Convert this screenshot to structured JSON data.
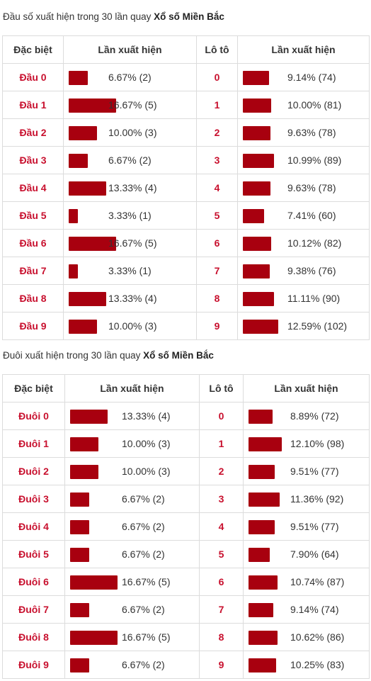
{
  "section1": {
    "title_prefix": "Đầu số xuất hiện trong 30 lần quay",
    "title_bold": "Xổ số Miền Bắc",
    "headers": [
      "Đặc biệt",
      "Lần xuất hiện",
      "Lô tô",
      "Lần xuất hiện"
    ],
    "rows": [
      {
        "label": "Đầu 0",
        "db_pct": 6.67,
        "db_text": "6.67% (2)",
        "lo": "0",
        "lo_pct": 9.14,
        "lo_text": "9.14% (74)"
      },
      {
        "label": "Đầu 1",
        "db_pct": 16.67,
        "db_text": "16.67% (5)",
        "lo": "1",
        "lo_pct": 10.0,
        "lo_text": "10.00% (81)"
      },
      {
        "label": "Đầu 2",
        "db_pct": 10.0,
        "db_text": "10.00% (3)",
        "lo": "2",
        "lo_pct": 9.63,
        "lo_text": "9.63% (78)"
      },
      {
        "label": "Đầu 3",
        "db_pct": 6.67,
        "db_text": "6.67% (2)",
        "lo": "3",
        "lo_pct": 10.99,
        "lo_text": "10.99% (89)"
      },
      {
        "label": "Đầu 4",
        "db_pct": 13.33,
        "db_text": "13.33% (4)",
        "lo": "4",
        "lo_pct": 9.63,
        "lo_text": "9.63% (78)"
      },
      {
        "label": "Đầu 5",
        "db_pct": 3.33,
        "db_text": "3.33% (1)",
        "lo": "5",
        "lo_pct": 7.41,
        "lo_text": "7.41% (60)"
      },
      {
        "label": "Đầu 6",
        "db_pct": 16.67,
        "db_text": "16.67% (5)",
        "lo": "6",
        "lo_pct": 10.12,
        "lo_text": "10.12% (82)"
      },
      {
        "label": "Đầu 7",
        "db_pct": 3.33,
        "db_text": "3.33% (1)",
        "lo": "7",
        "lo_pct": 9.38,
        "lo_text": "9.38% (76)"
      },
      {
        "label": "Đầu 8",
        "db_pct": 13.33,
        "db_text": "13.33% (4)",
        "lo": "8",
        "lo_pct": 11.11,
        "lo_text": "11.11% (90)"
      },
      {
        "label": "Đầu 9",
        "db_pct": 10.0,
        "db_text": "10.00% (3)",
        "lo": "9",
        "lo_pct": 12.59,
        "lo_text": "12.59% (102)"
      }
    ]
  },
  "section2": {
    "title_prefix": "Đuôi xuất hiện trong 30 lần quay",
    "title_bold": "Xổ số Miền Bắc",
    "headers": [
      "Đặc biệt",
      "Lần xuất hiện",
      "Lô tô",
      "Lần xuất hiện"
    ],
    "rows": [
      {
        "label": "Đuôi 0",
        "db_pct": 13.33,
        "db_text": "13.33% (4)",
        "lo": "0",
        "lo_pct": 8.89,
        "lo_text": "8.89% (72)"
      },
      {
        "label": "Đuôi 1",
        "db_pct": 10.0,
        "db_text": "10.00% (3)",
        "lo": "1",
        "lo_pct": 12.1,
        "lo_text": "12.10% (98)"
      },
      {
        "label": "Đuôi 2",
        "db_pct": 10.0,
        "db_text": "10.00% (3)",
        "lo": "2",
        "lo_pct": 9.51,
        "lo_text": "9.51% (77)"
      },
      {
        "label": "Đuôi 3",
        "db_pct": 6.67,
        "db_text": "6.67% (2)",
        "lo": "3",
        "lo_pct": 11.36,
        "lo_text": "11.36% (92)"
      },
      {
        "label": "Đuôi 4",
        "db_pct": 6.67,
        "db_text": "6.67% (2)",
        "lo": "4",
        "lo_pct": 9.51,
        "lo_text": "9.51% (77)"
      },
      {
        "label": "Đuôi 5",
        "db_pct": 6.67,
        "db_text": "6.67% (2)",
        "lo": "5",
        "lo_pct": 7.9,
        "lo_text": "7.90% (64)"
      },
      {
        "label": "Đuôi 6",
        "db_pct": 16.67,
        "db_text": "16.67% (5)",
        "lo": "6",
        "lo_pct": 10.74,
        "lo_text": "10.74% (87)"
      },
      {
        "label": "Đuôi 7",
        "db_pct": 6.67,
        "db_text": "6.67% (2)",
        "lo": "7",
        "lo_pct": 9.14,
        "lo_text": "9.14% (74)"
      },
      {
        "label": "Đuôi 8",
        "db_pct": 16.67,
        "db_text": "16.67% (5)",
        "lo": "8",
        "lo_pct": 10.62,
        "lo_text": "10.62% (86)"
      },
      {
        "label": "Đuôi 9",
        "db_pct": 6.67,
        "db_text": "6.67% (2)",
        "lo": "9",
        "lo_pct": 10.25,
        "lo_text": "10.25% (83)"
      }
    ]
  }
}
